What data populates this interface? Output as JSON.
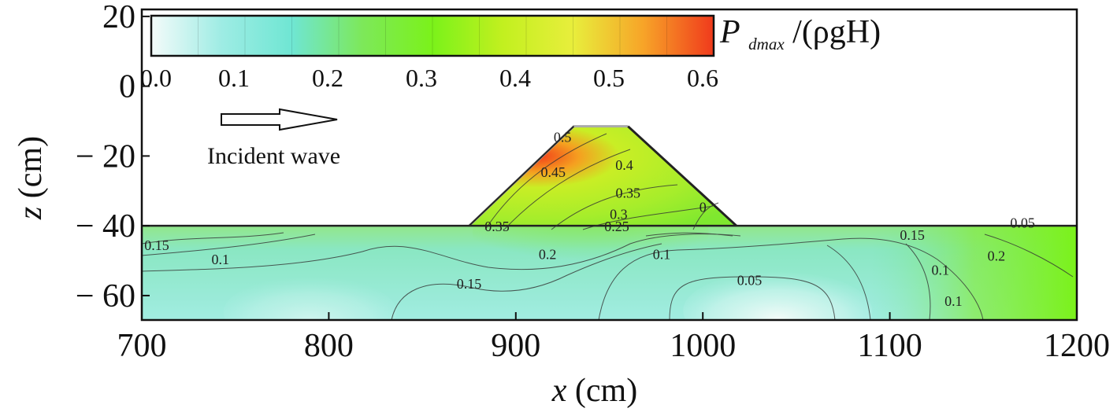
{
  "chart_data": {
    "type": "heatmap",
    "xlabel_var": "x",
    "xlabel_unit": "(cm)",
    "ylabel_var": "z",
    "ylabel_unit": "(cm)",
    "xlim": [
      700,
      1200
    ],
    "ylim": [
      -67,
      22
    ],
    "x_ticks": [
      700,
      800,
      900,
      1000,
      1100,
      1200
    ],
    "x_tick_labels": [
      "700",
      "800",
      "900",
      "1000",
      "1100",
      "1200"
    ],
    "y_ticks": [
      20,
      0,
      -20,
      -40,
      -60
    ],
    "y_tick_labels": [
      "20",
      "0",
      "− 20",
      "− 40",
      "− 60"
    ],
    "colorbar": {
      "label_main": "P",
      "label_sub": "dmax",
      "label_rest": "/(ρgH)",
      "min": 0.0,
      "max": 0.6,
      "ticks": [
        "0.0",
        "0.1",
        "0.2",
        "0.3",
        "0.4",
        "0.5",
        "0.6"
      ],
      "colors": [
        "#f4fbfa",
        "#9eece4",
        "#6fe6d3",
        "#7de85a",
        "#7bf21a",
        "#c2f01f",
        "#e8ee3c",
        "#f7a428",
        "#f03a1c"
      ]
    },
    "structure": {
      "seabed_z": -40,
      "toe_left_x": 875,
      "crest_left_x": 931,
      "crest_right_x": 960,
      "toe_right_x": 1018,
      "crest_z": -11.5
    },
    "annotation": "Incident wave",
    "contour_labels": [
      {
        "text": "0.5",
        "x": 925,
        "z": -16
      },
      {
        "text": "0.45",
        "x": 920,
        "z": -26
      },
      {
        "text": "0.4",
        "x": 958,
        "z": -24
      },
      {
        "text": "0.35",
        "x": 960,
        "z": -32
      },
      {
        "text": "0.3",
        "x": 955,
        "z": -38
      },
      {
        "text": "0",
        "x": 1000,
        "z": -36
      },
      {
        "text": "0.35",
        "x": 890,
        "z": -41.5
      },
      {
        "text": "0.25",
        "x": 954,
        "z": -41.5
      },
      {
        "text": "0.15",
        "x": 1112,
        "z": -44
      },
      {
        "text": "0.05",
        "x": 1171,
        "z": -40.5
      },
      {
        "text": "0.15",
        "x": 708,
        "z": -47
      },
      {
        "text": "0.1",
        "x": 742,
        "z": -51
      },
      {
        "text": "0.2",
        "x": 917,
        "z": -49.5
      },
      {
        "text": "0.1",
        "x": 978,
        "z": -49.5
      },
      {
        "text": "0.2",
        "x": 1157,
        "z": -50
      },
      {
        "text": "0.1",
        "x": 1127,
        "z": -54
      },
      {
        "text": "0.15",
        "x": 875,
        "z": -58
      },
      {
        "text": "0.05",
        "x": 1025,
        "z": -57
      },
      {
        "text": "0.1",
        "x": 1134,
        "z": -63
      }
    ]
  }
}
